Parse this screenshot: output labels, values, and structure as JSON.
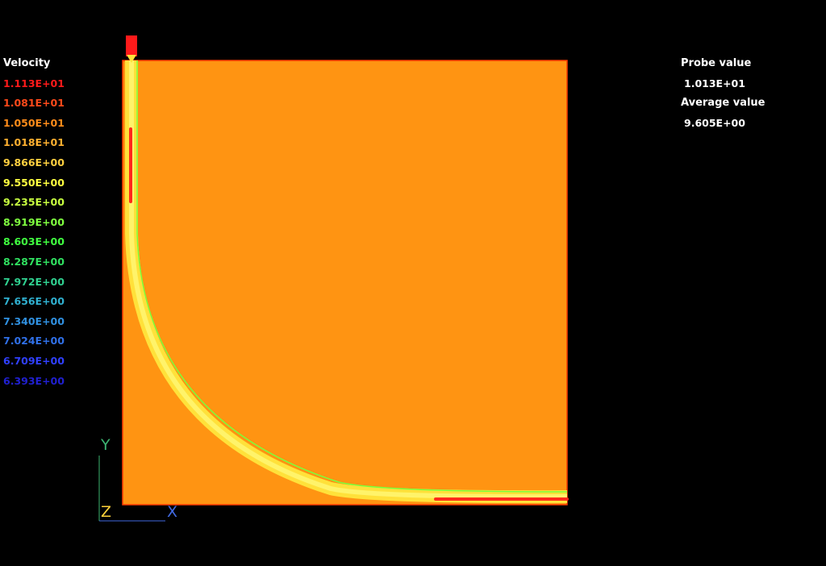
{
  "legend": {
    "title": "Velocity",
    "entries": [
      {
        "label": "1.113E+01",
        "color": "#ff1a1a"
      },
      {
        "label": "1.081E+01",
        "color": "#ff4a1a"
      },
      {
        "label": "1.050E+01",
        "color": "#ff8c1a"
      },
      {
        "label": "1.018E+01",
        "color": "#ffb030"
      },
      {
        "label": "9.866E+00",
        "color": "#ffd040"
      },
      {
        "label": "9.550E+00",
        "color": "#ffff40"
      },
      {
        "label": "9.235E+00",
        "color": "#c8ff40"
      },
      {
        "label": "8.919E+00",
        "color": "#80ff40"
      },
      {
        "label": "8.603E+00",
        "color": "#40ff40"
      },
      {
        "label": "8.287E+00",
        "color": "#30e060"
      },
      {
        "label": "7.972E+00",
        "color": "#30d090"
      },
      {
        "label": "7.656E+00",
        "color": "#30b0d0"
      },
      {
        "label": "7.340E+00",
        "color": "#3090e0"
      },
      {
        "label": "7.024E+00",
        "color": "#3070e8"
      },
      {
        "label": "6.709E+00",
        "color": "#3040ff"
      },
      {
        "label": "6.393E+00",
        "color": "#2020d0"
      }
    ]
  },
  "probe": {
    "probe_label": "Probe value",
    "probe_value": "1.013E+01",
    "average_label": "Average value",
    "average_value": "9.605E+00"
  },
  "axes": {
    "y_label": "Y",
    "z_label": "Z",
    "x_label": "X",
    "y_color": "#3cb371",
    "x_color": "#4169e1"
  },
  "colors": {
    "background": "#000000",
    "domain_fill": "#ff9412",
    "domain_border": "#ff3a00",
    "jet_outer": "#ffe13a",
    "jet_core": "#ff2a1a",
    "jet_edge": "#7cff3a",
    "nozzle": "#ff1a1a"
  }
}
